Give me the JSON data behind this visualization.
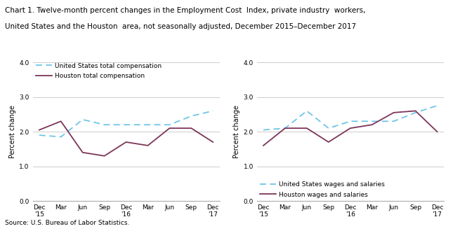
{
  "title_line1": "Chart 1. Twelve-month percent changes in the Employment Cost  Index, private industry  workers,",
  "title_line2": "United States and the Houston  area, not seasonally adjusted, December 2015–December 2017",
  "source": "Source: U.S. Bureau of Labor Statistics.",
  "x_labels": [
    "Dec\n'15",
    "Mar",
    "Jun",
    "Sep",
    "Dec\n'16",
    "Mar",
    "Jun",
    "Sep",
    "Dec\n'17"
  ],
  "year_labels": [
    "'16",
    "'17"
  ],
  "ylabel": "Percent change",
  "ylim": [
    0.0,
    4.0
  ],
  "yticks": [
    0.0,
    1.0,
    2.0,
    3.0,
    4.0
  ],
  "left_us_total": [
    1.9,
    1.85,
    2.35,
    2.2,
    2.2,
    2.2,
    2.2,
    2.45,
    2.6
  ],
  "left_houston_total": [
    2.05,
    2.3,
    1.4,
    1.3,
    1.7,
    1.6,
    2.1,
    2.1,
    1.7
  ],
  "right_us_wages": [
    2.05,
    2.1,
    2.6,
    2.1,
    2.3,
    2.3,
    2.3,
    2.55,
    2.75
  ],
  "right_houston_wages": [
    1.6,
    2.1,
    2.1,
    1.7,
    2.1,
    2.2,
    2.55,
    2.6,
    2.0
  ],
  "us_color": "#6ec6e8",
  "houston_color": "#7b3558",
  "us_linestyle": "dashed",
  "houston_linestyle": "solid",
  "left_legend1": "United States total compensation",
  "left_legend2": "Houston total compensation",
  "right_legend1": "United States wages and salaries",
  "right_legend2": "Houston wages and salaries",
  "background_color": "#ffffff",
  "grid_color": "#cccccc"
}
